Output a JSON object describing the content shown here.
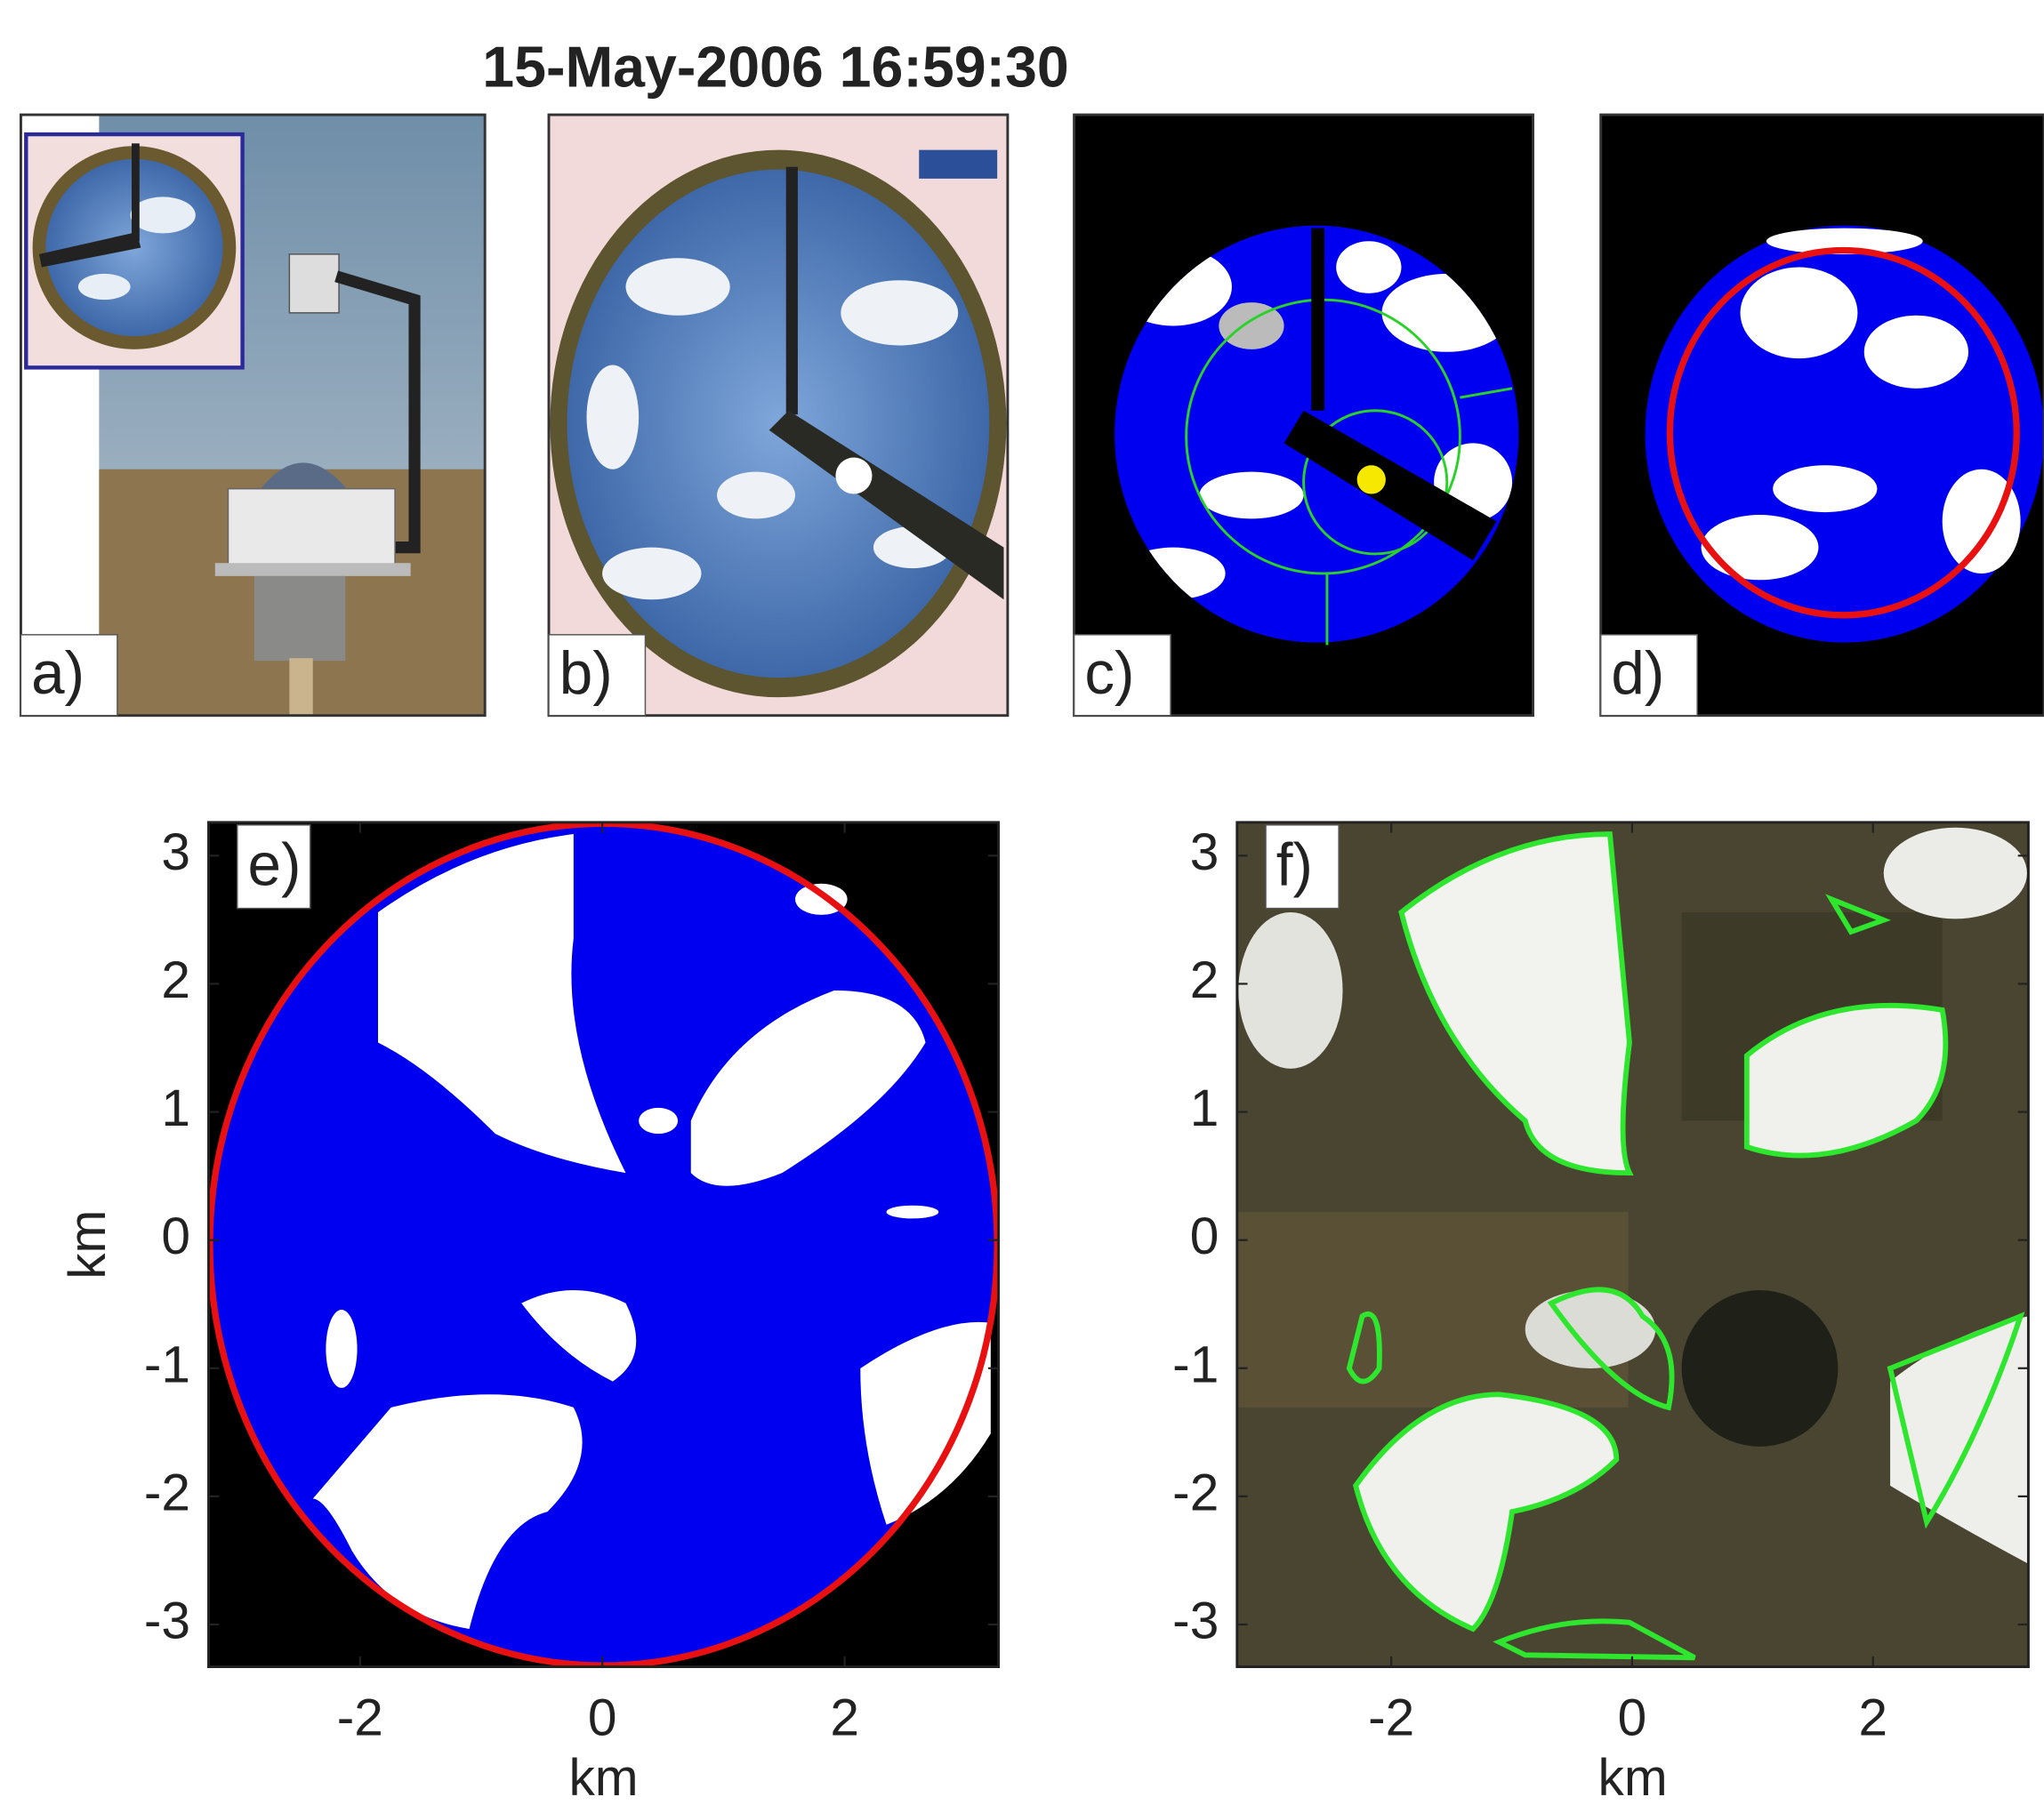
{
  "title": "15-May-2006 16:59:30",
  "panels": [
    {
      "label": "a)"
    },
    {
      "label": "b)"
    },
    {
      "label": "c)"
    },
    {
      "label": "d)"
    }
  ],
  "chart_data": [
    {
      "type": "image",
      "label": "e)",
      "xlabel": "km",
      "ylabel": "km",
      "xlim": [
        -3.25,
        3.27
      ],
      "ylim": [
        -3.33,
        3.26
      ],
      "xticks": [
        -2,
        0,
        2
      ],
      "yticks": [
        -3,
        -2,
        -1,
        0,
        1,
        2,
        3
      ]
    },
    {
      "type": "image",
      "label": "f)",
      "xlabel": "km",
      "xlim": [
        -3.28,
        3.29
      ],
      "ylim": [
        -3.33,
        3.26
      ],
      "xticks": [
        -2,
        0,
        2
      ],
      "yticks": [
        -3,
        -2,
        -1,
        0,
        1,
        2,
        3
      ]
    }
  ]
}
